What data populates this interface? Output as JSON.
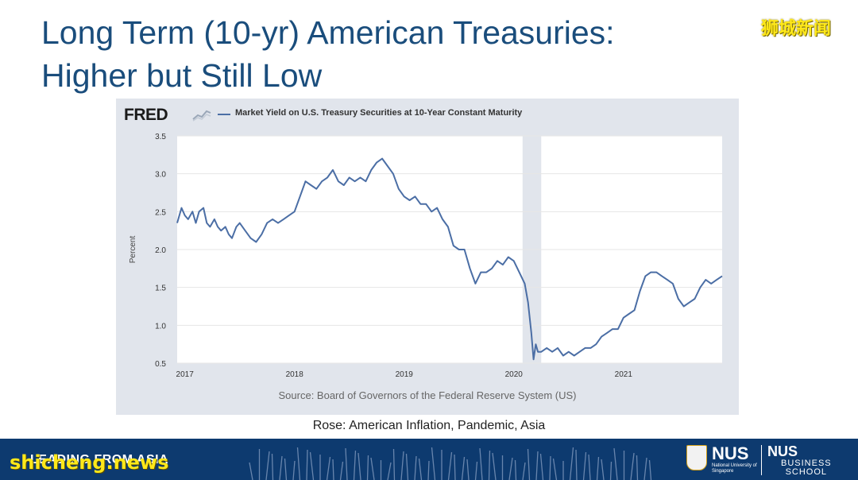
{
  "slide": {
    "title_line1": "Long Term (10-yr) American Treasuries:",
    "title_line2": "Higher but Still Low",
    "caption": "Rose: American Inflation, Pandemic, Asia",
    "footer_text": "LEADING FROM ASIA",
    "nus_name": "NUS",
    "nus_sub": "National University of Singapore",
    "nus_school_name": "NUS",
    "nus_school_sub1": "BUSINESS",
    "nus_school_sub2": "SCHOOL",
    "watermark_top": "狮城新闻",
    "watermark_bottom": "shicheng.news",
    "colors": {
      "title": "#1a4d7c",
      "footer": "#0d3a6f",
      "series": "#4b6ea5",
      "recession": "#e1e5ec"
    }
  },
  "chart_data": {
    "type": "line",
    "logo": "FRED",
    "title": "Market Yield on U.S. Treasury Securities at 10-Year Constant Maturity",
    "ylabel": "Percent",
    "xlabel": "",
    "source": "Source: Board of Governors of the Federal Reserve System (US)",
    "ylim": [
      0.5,
      3.5
    ],
    "xlim": [
      2016.93,
      2021.9
    ],
    "y_ticks": [
      "3.5",
      "3.0",
      "2.5",
      "2.0",
      "1.5",
      "1.0",
      "0.5"
    ],
    "x_ticks": [
      {
        "label": "2017",
        "value": 2017.0
      },
      {
        "label": "2018",
        "value": 2018.0
      },
      {
        "label": "2019",
        "value": 2019.0
      },
      {
        "label": "2020",
        "value": 2020.0
      },
      {
        "label": "2021",
        "value": 2021.0
      }
    ],
    "shaded_periods": [
      {
        "start": 2020.08,
        "end": 2020.25
      }
    ],
    "series": [
      {
        "name": "Market Yield on U.S. Treasury Securities at 10-Year Constant Maturity",
        "x": [
          2016.93,
          2016.97,
          2017.0,
          2017.03,
          2017.07,
          2017.1,
          2017.13,
          2017.17,
          2017.2,
          2017.23,
          2017.27,
          2017.3,
          2017.33,
          2017.37,
          2017.4,
          2017.43,
          2017.47,
          2017.5,
          2017.55,
          2017.6,
          2017.65,
          2017.7,
          2017.75,
          2017.8,
          2017.85,
          2017.9,
          2017.95,
          2018.0,
          2018.05,
          2018.1,
          2018.15,
          2018.2,
          2018.25,
          2018.3,
          2018.35,
          2018.4,
          2018.45,
          2018.5,
          2018.55,
          2018.6,
          2018.65,
          2018.7,
          2018.75,
          2018.8,
          2018.85,
          2018.9,
          2018.95,
          2019.0,
          2019.05,
          2019.1,
          2019.15,
          2019.2,
          2019.25,
          2019.3,
          2019.35,
          2019.4,
          2019.45,
          2019.5,
          2019.55,
          2019.6,
          2019.65,
          2019.7,
          2019.75,
          2019.8,
          2019.85,
          2019.9,
          2019.95,
          2020.0,
          2020.05,
          2020.1,
          2020.13,
          2020.16,
          2020.18,
          2020.2,
          2020.22,
          2020.25,
          2020.3,
          2020.35,
          2020.4,
          2020.45,
          2020.5,
          2020.55,
          2020.6,
          2020.65,
          2020.7,
          2020.75,
          2020.8,
          2020.85,
          2020.9,
          2020.95,
          2021.0,
          2021.05,
          2021.1,
          2021.15,
          2021.2,
          2021.25,
          2021.3,
          2021.35,
          2021.4,
          2021.45,
          2021.5,
          2021.55,
          2021.6,
          2021.65,
          2021.7,
          2021.75,
          2021.8,
          2021.85,
          2021.9
        ],
        "values": [
          2.35,
          2.55,
          2.45,
          2.4,
          2.5,
          2.35,
          2.5,
          2.55,
          2.35,
          2.3,
          2.4,
          2.3,
          2.25,
          2.3,
          2.2,
          2.15,
          2.3,
          2.35,
          2.25,
          2.15,
          2.1,
          2.2,
          2.35,
          2.4,
          2.35,
          2.4,
          2.45,
          2.5,
          2.7,
          2.9,
          2.85,
          2.8,
          2.9,
          2.95,
          3.05,
          2.9,
          2.85,
          2.95,
          2.9,
          2.95,
          2.9,
          3.05,
          3.15,
          3.2,
          3.1,
          3.0,
          2.8,
          2.7,
          2.65,
          2.7,
          2.6,
          2.6,
          2.5,
          2.55,
          2.4,
          2.3,
          2.05,
          2.0,
          2.0,
          1.75,
          1.55,
          1.7,
          1.7,
          1.75,
          1.85,
          1.8,
          1.9,
          1.85,
          1.7,
          1.55,
          1.3,
          0.9,
          0.55,
          0.75,
          0.65,
          0.65,
          0.7,
          0.65,
          0.7,
          0.6,
          0.65,
          0.6,
          0.65,
          0.7,
          0.7,
          0.75,
          0.85,
          0.9,
          0.95,
          0.95,
          1.1,
          1.15,
          1.2,
          1.45,
          1.65,
          1.7,
          1.7,
          1.65,
          1.6,
          1.55,
          1.35,
          1.25,
          1.3,
          1.35,
          1.5,
          1.6,
          1.55,
          1.6,
          1.65
        ]
      }
    ]
  }
}
